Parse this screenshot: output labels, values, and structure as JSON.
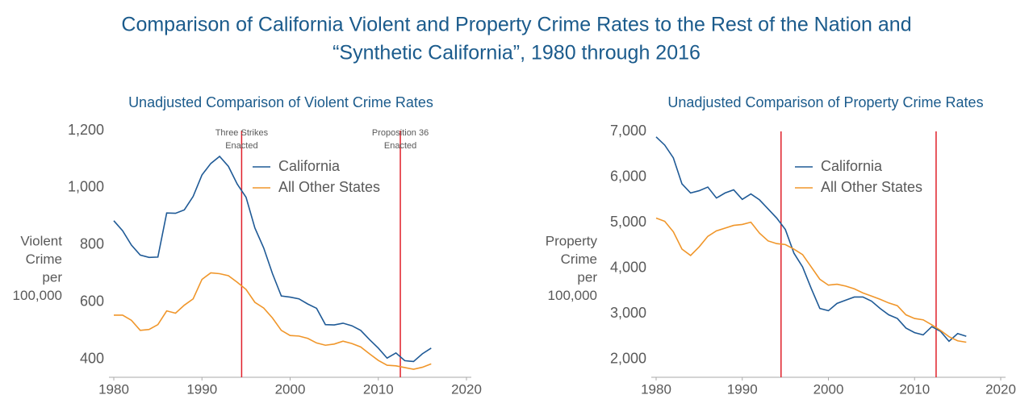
{
  "title": [
    "Comparison of California Violent and Property Crime Rates to the Rest of the Nation and",
    "“Synthetic California”, 1980 through 2016"
  ],
  "chart_data": [
    {
      "type": "line",
      "title": "Unadjusted Comparison of Violent Crime Rates",
      "ylabel": [
        "Violent",
        "Crime",
        "per",
        "100,000"
      ],
      "x": [
        1980,
        1981,
        1982,
        1983,
        1984,
        1985,
        1986,
        1987,
        1988,
        1989,
        1990,
        1991,
        1992,
        1993,
        1994,
        1995,
        1996,
        1997,
        1998,
        1999,
        2000,
        2001,
        2002,
        2003,
        2004,
        2005,
        2006,
        2007,
        2008,
        2009,
        2010,
        2011,
        2012,
        2013,
        2014,
        2015,
        2016
      ],
      "series": [
        {
          "name": "California",
          "color": "#1f5a96",
          "values": [
            885,
            850,
            800,
            765,
            757,
            758,
            912,
            911,
            923,
            970,
            1045,
            1085,
            1110,
            1075,
            1013,
            967,
            860,
            790,
            700,
            622,
            618,
            612,
            594,
            579,
            522,
            521,
            527,
            518,
            502,
            470,
            440,
            405,
            423,
            396,
            393,
            420,
            440
          ]
        },
        {
          "name": "All Other States",
          "color": "#f0962a",
          "values": [
            555,
            555,
            537,
            502,
            505,
            522,
            570,
            562,
            590,
            612,
            680,
            703,
            700,
            693,
            670,
            645,
            600,
            580,
            545,
            502,
            484,
            482,
            474,
            458,
            450,
            454,
            464,
            456,
            444,
            420,
            397,
            380,
            378,
            372,
            366,
            373,
            385
          ]
        }
      ],
      "xlim": [
        1980,
        2020
      ],
      "xticks": [
        1980,
        1990,
        2000,
        2010,
        2020
      ],
      "ylim": [
        338,
        1200
      ],
      "yticks": [
        400,
        600,
        800,
        {
          "value": 1000,
          "label": "1,000"
        },
        {
          "value": 1200,
          "label": "1,200"
        }
      ],
      "vlines": [
        1994.5,
        2012.5
      ],
      "vline_color": "#e0202a",
      "vline_labels": [
        [
          "Three Strikes",
          "Enacted"
        ],
        [
          "Proposition 36",
          "Enacted"
        ]
      ]
    },
    {
      "type": "line",
      "title": "Unadjusted Comparison of Property Crime Rates",
      "ylabel": [
        "Property",
        "Crime",
        "per",
        "100,000"
      ],
      "x": [
        1980,
        1981,
        1982,
        1983,
        1984,
        1985,
        1986,
        1987,
        1988,
        1989,
        1990,
        1991,
        1992,
        1993,
        1994,
        1995,
        1996,
        1997,
        1998,
        1999,
        2000,
        2001,
        2002,
        2003,
        2004,
        2005,
        2006,
        2007,
        2008,
        2009,
        2010,
        2011,
        2012,
        2013,
        2014,
        2015,
        2016
      ],
      "series": [
        {
          "name": "California",
          "color": "#1f5a96",
          "values": [
            6880,
            6700,
            6420,
            5850,
            5650,
            5700,
            5780,
            5540,
            5650,
            5720,
            5510,
            5630,
            5500,
            5300,
            5100,
            4850,
            4330,
            4030,
            3560,
            3120,
            3070,
            3230,
            3300,
            3370,
            3370,
            3280,
            3120,
            2980,
            2900,
            2690,
            2590,
            2540,
            2720,
            2620,
            2400,
            2570,
            2510
          ]
        },
        {
          "name": "All Other States",
          "color": "#f0962a",
          "values": [
            5100,
            5030,
            4800,
            4420,
            4280,
            4470,
            4700,
            4820,
            4880,
            4940,
            4960,
            5010,
            4770,
            4600,
            4540,
            4520,
            4420,
            4300,
            4030,
            3760,
            3630,
            3650,
            3610,
            3550,
            3460,
            3390,
            3320,
            3240,
            3180,
            2980,
            2900,
            2870,
            2760,
            2640,
            2500,
            2410,
            2380
          ]
        }
      ],
      "xlim": [
        1980,
        2020
      ],
      "xticks": [
        1980,
        1990,
        2000,
        2010,
        2020
      ],
      "ylim": [
        1611,
        7000
      ],
      "yticks": [
        {
          "value": 2000,
          "label": "2,000"
        },
        {
          "value": 3000,
          "label": "3,000"
        },
        {
          "value": 4000,
          "label": "4,000"
        },
        {
          "value": 5000,
          "label": "5,000"
        },
        {
          "value": 6000,
          "label": "6,000"
        },
        {
          "value": 7000,
          "label": "7,000"
        }
      ],
      "vlines": [
        1994.5,
        2012.5
      ],
      "vline_color": "#e0202a"
    }
  ]
}
